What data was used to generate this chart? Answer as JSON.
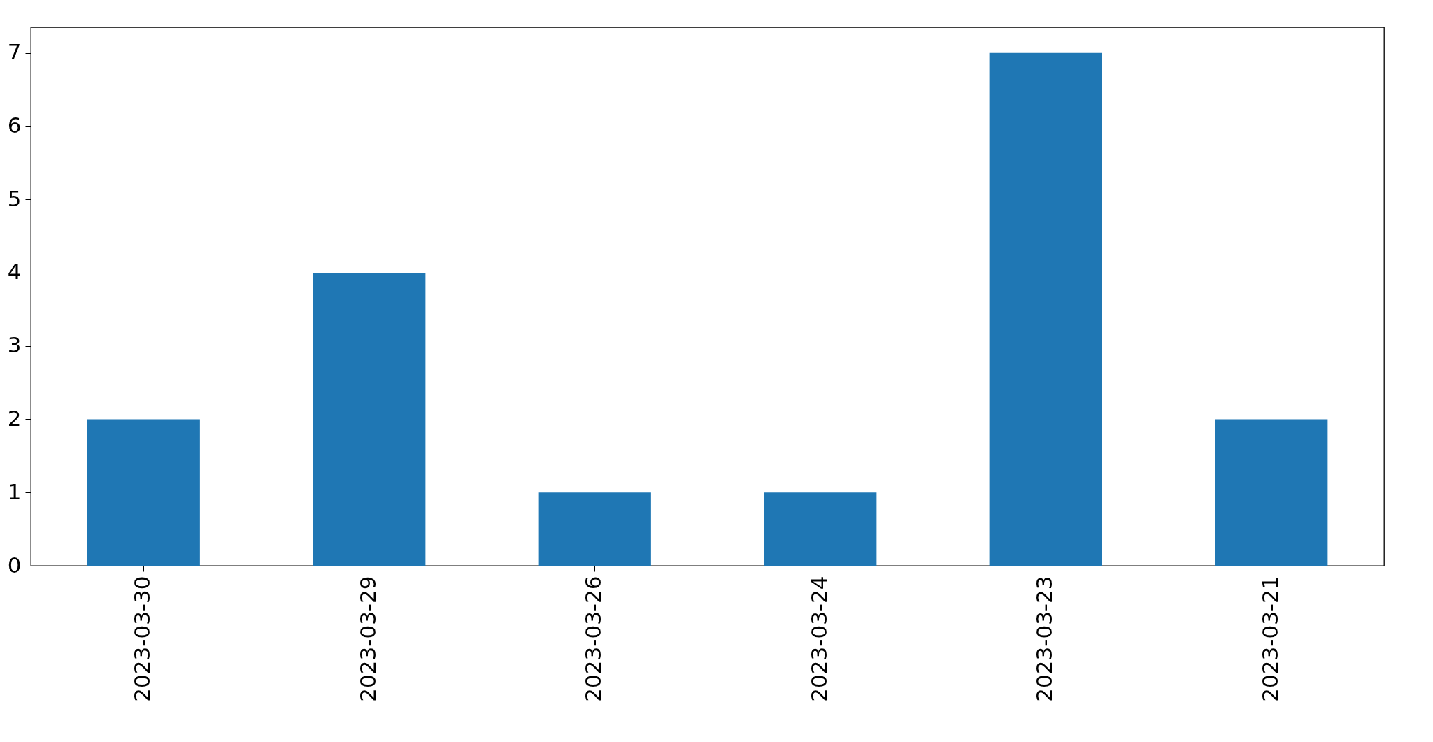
{
  "chart_data": {
    "type": "bar",
    "categories": [
      "2023-03-30",
      "2023-03-29",
      "2023-03-26",
      "2023-03-24",
      "2023-03-23",
      "2023-03-21"
    ],
    "values": [
      2,
      4,
      1,
      1,
      7,
      2
    ],
    "color": "#1f77b4",
    "ylim": [
      0,
      7.35
    ],
    "yticks": [
      0,
      1,
      2,
      3,
      4,
      5,
      6,
      7
    ],
    "grid": false
  }
}
